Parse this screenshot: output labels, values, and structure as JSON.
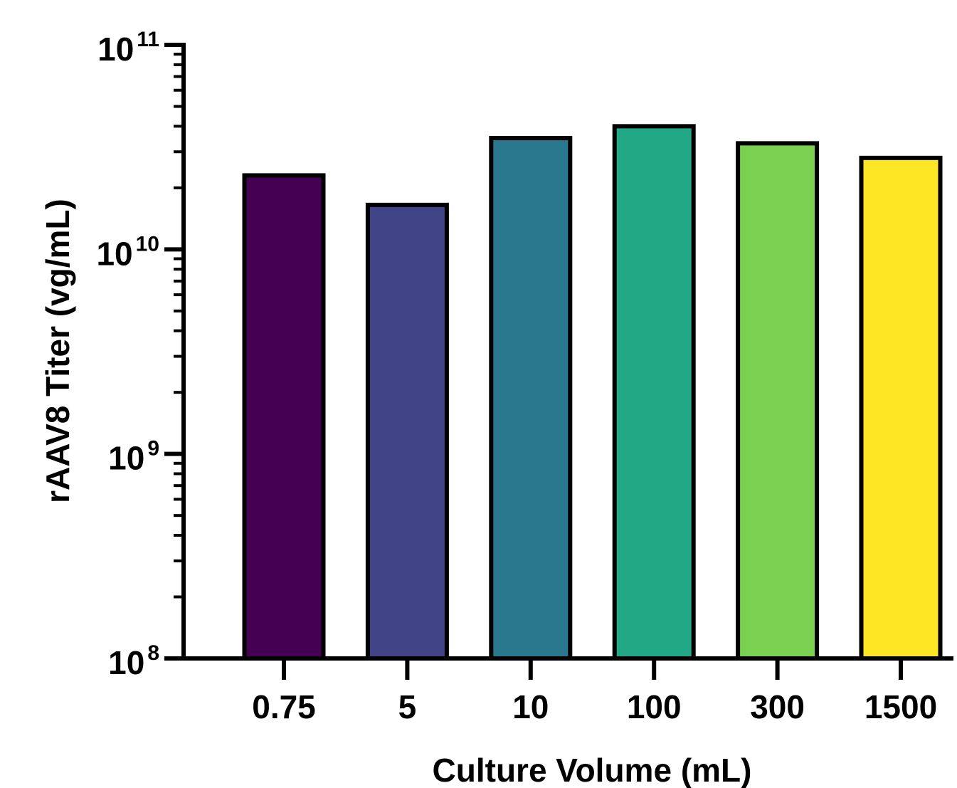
{
  "chart_data": {
    "type": "bar",
    "title": "",
    "xlabel": "Culture Volume (mL)",
    "ylabel": "rAAV8 Titer (vg/mL)",
    "y_scale": "log",
    "ylim": [
      100000000,
      100000000000
    ],
    "y_ticks": [
      {
        "base": "10",
        "exp": "8"
      },
      {
        "base": "10",
        "exp": "9"
      },
      {
        "base": "10",
        "exp": "10"
      },
      {
        "base": "10",
        "exp": "11"
      }
    ],
    "categories": [
      "0.75",
      "5",
      "10",
      "100",
      "300",
      "1500"
    ],
    "values": [
      23000000000,
      16500000000,
      35000000000,
      40000000000,
      33000000000,
      28000000000
    ],
    "colors": [
      "#440154",
      "#414487",
      "#2a788e",
      "#22a884",
      "#7ad151",
      "#fde725"
    ],
    "grid": false,
    "legend": "none"
  }
}
